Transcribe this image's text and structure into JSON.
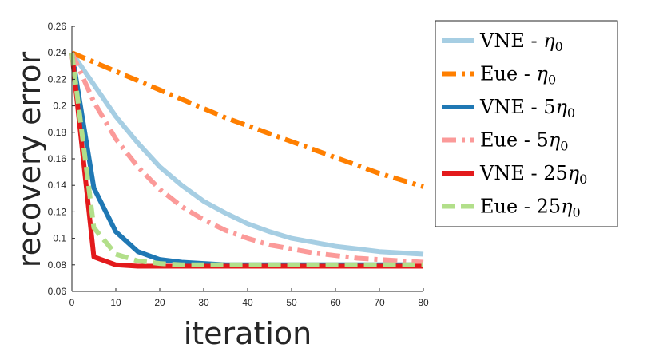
{
  "chart_data": {
    "type": "line",
    "title": "",
    "xlabel": "iteration",
    "ylabel": "recovery error",
    "xlim": [
      0,
      80
    ],
    "ylim": [
      0.06,
      0.26
    ],
    "xticks": [
      0,
      10,
      20,
      30,
      40,
      50,
      60,
      70,
      80
    ],
    "xtick_labels": [
      "0",
      "10",
      "20",
      "30",
      "40",
      "50",
      "60",
      "70",
      "80"
    ],
    "yticks": [
      0.06,
      0.08,
      0.1,
      0.12,
      0.14,
      0.16,
      0.18,
      0.2,
      0.22,
      0.24,
      0.26
    ],
    "ytick_labels": [
      "0.06",
      "0.08",
      "0.1",
      "0.12",
      "0.14",
      "0.16",
      "0.18",
      "0.2",
      "0.22",
      "0.24",
      "0.26"
    ],
    "grid": false,
    "legend_position": "right",
    "x": [
      0,
      5,
      10,
      15,
      20,
      25,
      30,
      35,
      40,
      45,
      50,
      55,
      60,
      65,
      70,
      75,
      80
    ],
    "series": [
      {
        "name": "VNE - ",
        "eta_label": "η0",
        "eta_prefix": "",
        "color": "#a6cee3",
        "style": "solid",
        "values": [
          0.24,
          0.216,
          0.192,
          0.172,
          0.154,
          0.14,
          0.128,
          0.119,
          0.111,
          0.105,
          0.1,
          0.097,
          0.094,
          0.092,
          0.09,
          0.089,
          0.088
        ]
      },
      {
        "name": "Eue - ",
        "eta_label": "η0",
        "eta_prefix": "",
        "color": "#ff7f00",
        "style": "dashdot",
        "values": [
          0.24,
          0.233,
          0.226,
          0.219,
          0.212,
          0.205,
          0.198,
          0.191,
          0.185,
          0.179,
          0.173,
          0.167,
          0.161,
          0.155,
          0.149,
          0.144,
          0.139
        ]
      },
      {
        "name": "VNE - ",
        "eta_label": "η0",
        "eta_prefix": "5",
        "color": "#1f78b4",
        "style": "solid",
        "values": [
          0.24,
          0.138,
          0.105,
          0.09,
          0.084,
          0.082,
          0.081,
          0.08,
          0.08,
          0.08,
          0.08,
          0.08,
          0.08,
          0.08,
          0.08,
          0.08,
          0.08
        ]
      },
      {
        "name": "Eue - ",
        "eta_label": "η0",
        "eta_prefix": "5",
        "color": "#fb9a99",
        "style": "dashdot",
        "values": [
          0.24,
          0.203,
          0.175,
          0.154,
          0.137,
          0.124,
          0.114,
          0.106,
          0.1,
          0.095,
          0.092,
          0.089,
          0.087,
          0.085,
          0.084,
          0.083,
          0.082
        ]
      },
      {
        "name": "VNE - ",
        "eta_label": "η0",
        "eta_prefix": "25",
        "color": "#e31a1c",
        "style": "solid",
        "values": [
          0.24,
          0.086,
          0.08,
          0.079,
          0.079,
          0.079,
          0.079,
          0.079,
          0.079,
          0.079,
          0.079,
          0.079,
          0.079,
          0.079,
          0.079,
          0.079,
          0.079
        ]
      },
      {
        "name": "Eue - ",
        "eta_label": "η0",
        "eta_prefix": "25",
        "color": "#b2df8a",
        "style": "dash",
        "values": [
          0.24,
          0.108,
          0.088,
          0.083,
          0.081,
          0.08,
          0.08,
          0.08,
          0.08,
          0.08,
          0.08,
          0.08,
          0.08,
          0.08,
          0.08,
          0.08,
          0.08
        ]
      }
    ]
  }
}
